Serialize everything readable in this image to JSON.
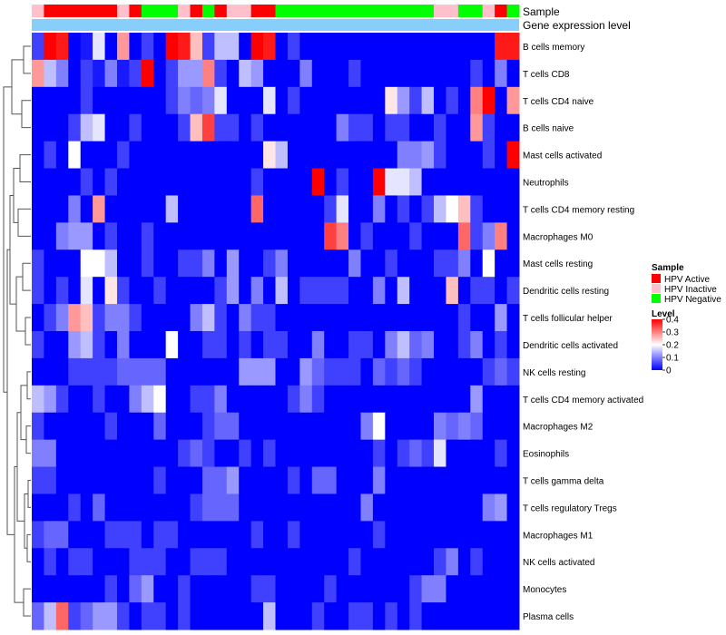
{
  "chart_data": {
    "type": "heatmap",
    "title": "",
    "annotation_rows": [
      "Sample",
      "Gene expression level"
    ],
    "gene_expression_color": "#87cefa",
    "legend_sample": {
      "title": "Sample",
      "entries": [
        {
          "label": "HPV Active",
          "color": "#ff0000"
        },
        {
          "label": "HPV Inactive",
          "color": "#ffc0cb"
        },
        {
          "label": "HPV Negative",
          "color": "#00ff00"
        }
      ]
    },
    "legend_level": {
      "title": "Level",
      "ticks": [
        "0.4",
        "0.3",
        "0.2",
        "0.1",
        "0"
      ],
      "tick_values": [
        0.4,
        0.3,
        0.2,
        0.1,
        0
      ],
      "range": [
        0,
        0.4
      ],
      "colors": [
        "#0000ff",
        "#ffffff",
        "#ff0000"
      ]
    },
    "sample_groups": [
      2,
      1,
      1,
      1,
      1,
      1,
      1,
      2,
      1,
      3,
      3,
      3,
      2,
      1,
      3,
      1,
      2,
      2,
      1,
      1,
      3,
      3,
      3,
      3,
      3,
      3,
      3,
      3,
      3,
      3,
      3,
      3,
      3,
      2,
      2,
      3,
      3,
      2,
      1,
      3
    ],
    "rows": [
      "B cells memory",
      "T cells CD8",
      "T cells CD4 naive",
      "B cells naive",
      "Mast cells activated",
      "Neutrophils",
      "T cells CD4 memory resting",
      "Macrophages M0",
      "Mast cells resting",
      "Dendritic cells resting",
      "T cells follicular helper",
      "Dendritic cells activated",
      "NK cells resting",
      "T cells CD4 memory activated",
      "Macrophages M2",
      "Eosinophils",
      "T cells gamma delta",
      "T cells regulatory  Tregs",
      "Macrophages M1",
      "NK cells activated",
      "Monocytes",
      "Plasma cells"
    ],
    "values": [
      [
        0.05,
        0.4,
        0.38,
        0,
        0.02,
        0.18,
        0,
        0.28,
        0,
        0.05,
        0,
        0.4,
        0.38,
        0.25,
        0.05,
        0.15,
        0.15,
        0,
        0.4,
        0.38,
        0,
        0.05,
        0,
        0,
        0,
        0,
        0,
        0,
        0,
        0,
        0,
        0,
        0,
        0,
        0,
        0,
        0,
        0,
        0.38,
        0.38
      ],
      [
        0.28,
        0.15,
        0.1,
        0,
        0.05,
        0.02,
        0.1,
        0.02,
        0.05,
        0.42,
        0,
        0.05,
        0.12,
        0.12,
        0.3,
        0.05,
        0,
        0.15,
        0.12,
        0,
        0,
        0,
        0.1,
        0,
        0,
        0,
        0.05,
        0,
        0,
        0,
        0,
        0,
        0,
        0,
        0,
        0,
        0.05,
        0,
        0.1,
        0
      ],
      [
        0,
        0,
        0,
        0,
        0.05,
        0,
        0,
        0,
        0,
        0,
        0,
        0.05,
        0.1,
        0.08,
        0.1,
        0.18,
        0,
        0,
        0,
        0.18,
        0,
        0.05,
        0,
        0,
        0,
        0,
        0,
        0,
        0,
        0.22,
        0.12,
        0.05,
        0.15,
        0,
        0.05,
        0,
        0.3,
        0.42,
        0,
        0.28
      ],
      [
        0,
        0,
        0,
        0.05,
        0.15,
        0.18,
        0,
        0,
        0.05,
        0,
        0,
        0,
        0.05,
        0.25,
        0.35,
        0.05,
        0.05,
        0,
        0.05,
        0,
        0,
        0,
        0,
        0,
        0,
        0.1,
        0.05,
        0.05,
        0,
        0.05,
        0.05,
        0,
        0,
        0.05,
        0,
        0,
        0.28,
        0.05,
        0,
        0
      ],
      [
        0,
        0.05,
        0,
        0.2,
        0,
        0,
        0,
        0.05,
        0,
        0,
        0,
        0,
        0,
        0,
        0,
        0,
        0,
        0,
        0,
        0.22,
        0.15,
        0,
        0,
        0,
        0,
        0,
        0,
        0,
        0,
        0,
        0.1,
        0.1,
        0.12,
        0.05,
        0,
        0,
        0,
        0.05,
        0,
        0.4
      ],
      [
        0,
        0,
        0,
        0,
        0.05,
        0,
        0.05,
        0,
        0,
        0,
        0,
        0,
        0,
        0,
        0,
        0,
        0,
        0,
        0.05,
        0,
        0,
        0,
        0,
        0.42,
        0,
        0.05,
        0,
        0,
        0.42,
        0.18,
        0.18,
        0.15,
        0,
        0,
        0,
        0,
        0,
        0,
        0,
        0
      ],
      [
        0,
        0,
        0,
        0.1,
        0,
        0.28,
        0,
        0,
        0,
        0,
        0,
        0.15,
        0,
        0,
        0,
        0,
        0,
        0,
        0.32,
        0,
        0,
        0,
        0,
        0,
        0.05,
        0.18,
        0,
        0,
        0.1,
        0,
        0.05,
        0,
        0.05,
        0.15,
        0.2,
        0.25,
        0.05,
        0,
        0,
        0
      ],
      [
        0,
        0,
        0.1,
        0.12,
        0.12,
        0,
        0.05,
        0,
        0,
        0.05,
        0,
        0,
        0,
        0,
        0,
        0,
        0,
        0,
        0,
        0,
        0,
        0,
        0,
        0,
        0.35,
        0.3,
        0,
        0.05,
        0,
        0,
        0,
        0.05,
        0,
        0,
        0,
        0.32,
        0.05,
        0.1,
        0.3,
        0
      ],
      [
        0.05,
        0,
        0,
        0,
        0.2,
        0.2,
        0.15,
        0,
        0,
        0.05,
        0,
        0,
        0.05,
        0.05,
        0.1,
        0,
        0.12,
        0,
        0,
        0.05,
        0.1,
        0,
        0,
        0,
        0,
        0,
        0.1,
        0,
        0,
        0.05,
        0,
        0,
        0,
        0.05,
        0.05,
        0.1,
        0,
        0.2,
        0,
        0
      ],
      [
        0.05,
        0,
        0.05,
        0,
        0.18,
        0,
        0.22,
        0.05,
        0,
        0,
        0.05,
        0,
        0,
        0,
        0,
        0.05,
        0.12,
        0,
        0.1,
        0,
        0.15,
        0,
        0.05,
        0.05,
        0.05,
        0.05,
        0,
        0,
        0.1,
        0,
        0.15,
        0,
        0,
        0,
        0.25,
        0,
        0.05,
        0.05,
        0,
        0.05
      ],
      [
        0,
        0.05,
        0.1,
        0.28,
        0.25,
        0.05,
        0.1,
        0.1,
        0.05,
        0,
        0,
        0,
        0,
        0.1,
        0.15,
        0.05,
        0,
        0.1,
        0.05,
        0.05,
        0,
        0,
        0,
        0,
        0,
        0,
        0,
        0,
        0,
        0,
        0,
        0,
        0,
        0,
        0,
        0.05,
        0,
        0,
        0.12,
        0
      ],
      [
        0.05,
        0,
        0,
        0.12,
        0.15,
        0.05,
        0,
        0.1,
        0,
        0,
        0,
        0.2,
        0,
        0,
        0.05,
        0.05,
        0,
        0.05,
        0,
        0.05,
        0.05,
        0,
        0,
        0.1,
        0,
        0,
        0.05,
        0.05,
        0,
        0.1,
        0.15,
        0.08,
        0.1,
        0,
        0,
        0.05,
        0.1,
        0,
        0.05,
        0
      ],
      [
        0,
        0,
        0,
        0.05,
        0.05,
        0.05,
        0.05,
        0.08,
        0.08,
        0.08,
        0.08,
        0,
        0,
        0,
        0,
        0,
        0,
        0.12,
        0.12,
        0.12,
        0,
        0,
        0.12,
        0.08,
        0.05,
        0.05,
        0.05,
        0,
        0.08,
        0.05,
        0.08,
        0.05,
        0,
        0,
        0,
        0,
        0,
        0.05,
        0.08,
        0.05
      ],
      [
        0.15,
        0.12,
        0.05,
        0,
        0,
        0.05,
        0,
        0,
        0.1,
        0.15,
        0.2,
        0,
        0,
        0.05,
        0.05,
        0.1,
        0,
        0,
        0,
        0,
        0,
        0.05,
        0.1,
        0.05,
        0,
        0,
        0,
        0,
        0,
        0,
        0,
        0,
        0,
        0,
        0,
        0,
        0.12,
        0,
        0,
        0
      ],
      [
        0.05,
        0,
        0,
        0,
        0,
        0,
        0.05,
        0,
        0,
        0,
        0.08,
        0,
        0,
        0,
        0.05,
        0.08,
        0.08,
        0,
        0,
        0,
        0,
        0,
        0,
        0,
        0,
        0,
        0,
        0.1,
        0.2,
        0,
        0,
        0,
        0,
        0.1,
        0.08,
        0.1,
        0.08,
        0,
        0,
        0
      ],
      [
        0.1,
        0.1,
        0,
        0,
        0,
        0,
        0,
        0,
        0,
        0,
        0,
        0,
        0.05,
        0.08,
        0.05,
        0,
        0,
        0.05,
        0,
        0.05,
        0,
        0,
        0,
        0,
        0,
        0,
        0,
        0,
        0.05,
        0,
        0.05,
        0.08,
        0.05,
        0.18,
        0,
        0,
        0,
        0,
        0.05,
        0
      ],
      [
        0.05,
        0.05,
        0,
        0,
        0,
        0,
        0,
        0,
        0,
        0,
        0.05,
        0,
        0,
        0,
        0.08,
        0.08,
        0.12,
        0,
        0,
        0,
        0,
        0.05,
        0,
        0.08,
        0.08,
        0,
        0,
        0,
        0.1,
        0,
        0,
        0,
        0,
        0,
        0,
        0,
        0,
        0,
        0,
        0
      ],
      [
        0,
        0,
        0,
        0.05,
        0,
        0.08,
        0,
        0,
        0,
        0,
        0,
        0,
        0,
        0.05,
        0.08,
        0.08,
        0.08,
        0,
        0,
        0,
        0,
        0,
        0,
        0,
        0,
        0,
        0,
        0.1,
        0,
        0,
        0,
        0,
        0,
        0,
        0,
        0,
        0,
        0.1,
        0.12,
        0
      ],
      [
        0.05,
        0.08,
        0.08,
        0,
        0,
        0,
        0.05,
        0.05,
        0.05,
        0,
        0.05,
        0.05,
        0,
        0,
        0,
        0,
        0,
        0,
        0.05,
        0,
        0,
        0.05,
        0,
        0,
        0,
        0,
        0,
        0,
        0.05,
        0,
        0,
        0,
        0,
        0,
        0,
        0,
        0,
        0,
        0,
        0
      ],
      [
        0,
        0.05,
        0,
        0.05,
        0.05,
        0,
        0,
        0,
        0.05,
        0.05,
        0.05,
        0,
        0,
        0.05,
        0.05,
        0.05,
        0,
        0,
        0,
        0,
        0,
        0,
        0,
        0,
        0,
        0,
        0.05,
        0,
        0,
        0,
        0,
        0,
        0,
        0.05,
        0.1,
        0,
        0.05,
        0,
        0,
        0
      ],
      [
        0,
        0,
        0,
        0,
        0,
        0,
        0.05,
        0,
        0.08,
        0.12,
        0,
        0,
        0.05,
        0,
        0,
        0,
        0,
        0,
        0.05,
        0.05,
        0,
        0,
        0,
        0,
        0.05,
        0,
        0,
        0,
        0,
        0,
        0,
        0.05,
        0.1,
        0.1,
        0,
        0,
        0,
        0,
        0,
        0
      ],
      [
        0.08,
        0.15,
        0.32,
        0.05,
        0.08,
        0.12,
        0.12,
        0.05,
        0,
        0.05,
        0.05,
        0,
        0.05,
        0,
        0,
        0,
        0,
        0,
        0,
        0.15,
        0,
        0,
        0,
        0.05,
        0,
        0,
        0.05,
        0.05,
        0,
        0.05,
        0,
        0.05,
        0,
        0,
        0,
        0,
        0,
        0,
        0,
        0
      ]
    ]
  }
}
